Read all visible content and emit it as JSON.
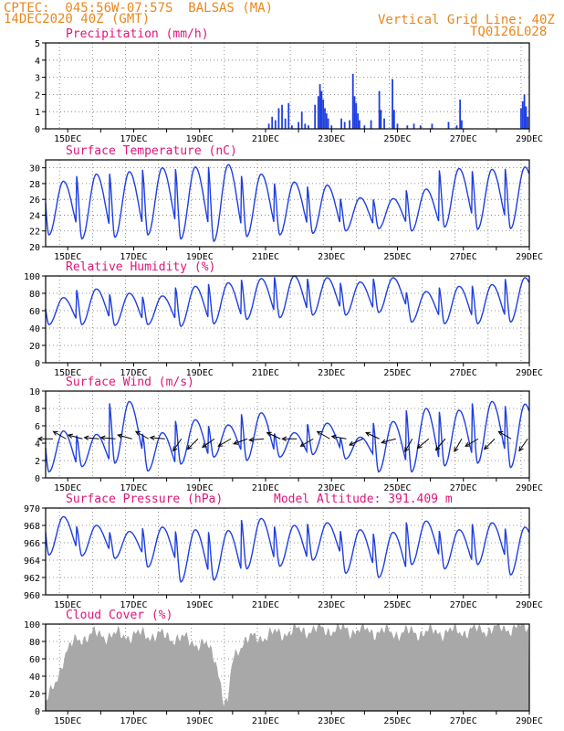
{
  "header": {
    "line1": "CPTEC:  045:56W-07:57S  BALSAS (MA)",
    "line2": "14DEC2020 40Z (GMT)",
    "grid_note": "Vertical Grid Line: 40Z",
    "code": "TQ0126L028"
  },
  "colors": {
    "header": "#e8871e",
    "title": "#e0147a",
    "line": "#1f3fe0",
    "cloud": "#a8a8a8",
    "arrow": "#000000"
  },
  "chart_data": [
    {
      "type": "bar",
      "title": "Precipitation (mm/h)",
      "ylim": [
        0,
        5
      ],
      "yticks": [
        0,
        1,
        2,
        3,
        4,
        5
      ],
      "xlabels": [
        "15DEC",
        "17DEC",
        "19DEC",
        "21DEC",
        "23DEC",
        "25DEC",
        "27DEC",
        "29DEC"
      ],
      "x_unit": "day of Dec 2020",
      "xlim": [
        14.33,
        29.0
      ],
      "bar_color": "#1f3fe0",
      "series": [
        {
          "x": 21.1,
          "y": 0.3
        },
        {
          "x": 21.2,
          "y": 0.7
        },
        {
          "x": 21.3,
          "y": 0.5
        },
        {
          "x": 21.4,
          "y": 1.2
        },
        {
          "x": 21.5,
          "y": 1.4
        },
        {
          "x": 21.6,
          "y": 0.6
        },
        {
          "x": 21.7,
          "y": 1.5
        },
        {
          "x": 21.8,
          "y": 0.2
        },
        {
          "x": 22.0,
          "y": 0.4
        },
        {
          "x": 22.1,
          "y": 1.0
        },
        {
          "x": 22.2,
          "y": 0.3
        },
        {
          "x": 22.3,
          "y": 0.2
        },
        {
          "x": 22.5,
          "y": 1.4
        },
        {
          "x": 22.6,
          "y": 1.9
        },
        {
          "x": 22.65,
          "y": 2.6
        },
        {
          "x": 22.7,
          "y": 2.2
        },
        {
          "x": 22.75,
          "y": 1.7
        },
        {
          "x": 22.8,
          "y": 1.2
        },
        {
          "x": 22.85,
          "y": 0.9
        },
        {
          "x": 22.9,
          "y": 0.6
        },
        {
          "x": 23.0,
          "y": 0.2
        },
        {
          "x": 23.3,
          "y": 0.6
        },
        {
          "x": 23.4,
          "y": 0.4
        },
        {
          "x": 23.55,
          "y": 0.5
        },
        {
          "x": 23.65,
          "y": 3.2
        },
        {
          "x": 23.7,
          "y": 1.9
        },
        {
          "x": 23.75,
          "y": 1.5
        },
        {
          "x": 23.8,
          "y": 0.9
        },
        {
          "x": 23.85,
          "y": 0.5
        },
        {
          "x": 24.0,
          "y": 0.2
        },
        {
          "x": 24.2,
          "y": 0.5
        },
        {
          "x": 24.45,
          "y": 2.2
        },
        {
          "x": 24.5,
          "y": 1.1
        },
        {
          "x": 24.6,
          "y": 0.6
        },
        {
          "x": 24.85,
          "y": 2.9
        },
        {
          "x": 24.9,
          "y": 1.1
        },
        {
          "x": 25.0,
          "y": 0.3
        },
        {
          "x": 25.3,
          "y": 0.2
        },
        {
          "x": 25.5,
          "y": 0.3
        },
        {
          "x": 25.7,
          "y": 0.2
        },
        {
          "x": 26.05,
          "y": 0.3
        },
        {
          "x": 26.55,
          "y": 0.4
        },
        {
          "x": 26.8,
          "y": 0.2
        },
        {
          "x": 26.9,
          "y": 1.7
        },
        {
          "x": 26.95,
          "y": 0.5
        },
        {
          "x": 28.75,
          "y": 1.2
        },
        {
          "x": 28.8,
          "y": 1.6
        },
        {
          "x": 28.85,
          "y": 2.0
        },
        {
          "x": 28.9,
          "y": 1.3
        },
        {
          "x": 28.95,
          "y": 0.7
        }
      ]
    },
    {
      "type": "line",
      "title": "Surface Temperature (nC)",
      "ylim": [
        20,
        31
      ],
      "yticks": [
        20,
        22,
        24,
        26,
        28,
        30
      ],
      "xlabels": [
        "15DEC",
        "17DEC",
        "19DEC",
        "21DEC",
        "23DEC",
        "25DEC",
        "27DEC",
        "29DEC"
      ],
      "x_unit": "day of Dec 2020",
      "xlim": [
        14.33,
        29.0
      ],
      "daily_min": [
        21.5,
        21.0,
        21.2,
        21.5,
        21.0,
        20.7,
        21.3,
        21.5,
        21.7,
        22.0,
        22.3,
        22.0,
        22.5,
        22.2,
        22.3
      ],
      "daily_max": [
        28.3,
        29.2,
        29.5,
        30.0,
        30.1,
        30.4,
        29.2,
        28.2,
        27.8,
        26.2,
        26.1,
        27.3,
        29.9,
        29.8,
        30.1
      ]
    },
    {
      "type": "line",
      "title": "Relative Humidity (%)",
      "ylim": [
        0,
        100
      ],
      "yticks": [
        0,
        20,
        40,
        60,
        80,
        100
      ],
      "xlabels": [
        "15DEC",
        "17DEC",
        "19DEC",
        "21DEC",
        "23DEC",
        "25DEC",
        "27DEC",
        "29DEC"
      ],
      "x_unit": "day of Dec 2020",
      "xlim": [
        14.33,
        29.0
      ],
      "daily_min": [
        44,
        44,
        43,
        44,
        42,
        45,
        50,
        52,
        55,
        55,
        58,
        47,
        45,
        45,
        47
      ],
      "daily_max": [
        75,
        85,
        80,
        77,
        88,
        92,
        97,
        100,
        98,
        93,
        98,
        82,
        88,
        90,
        98
      ]
    },
    {
      "type": "line",
      "title": "Surface Wind (m/s)",
      "ylim": [
        0,
        10
      ],
      "yticks": [
        0,
        2,
        4,
        6,
        8,
        10
      ],
      "xlabels": [
        "15DEC",
        "17DEC",
        "19DEC",
        "21DEC",
        "23DEC",
        "25DEC",
        "27DEC",
        "29DEC"
      ],
      "x_unit": "day of Dec 2020",
      "xlim": [
        14.33,
        29.0
      ],
      "daily_min": [
        0.7,
        1.3,
        1.7,
        0.8,
        1.6,
        2.4,
        2.0,
        2.4,
        2.7,
        2.2,
        0.7,
        0.7,
        1.4,
        1.7,
        1.2
      ],
      "daily_max": [
        5.4,
        5.0,
        8.8,
        5.2,
        6.7,
        6.1,
        7.5,
        5.2,
        6.3,
        4.7,
        6.5,
        8.0,
        7.8,
        8.8,
        8.5
      ],
      "wind_arrows": [
        {
          "x": 14.55,
          "dir": 270
        },
        {
          "x": 14.95,
          "dir": 300
        },
        {
          "x": 15.45,
          "dir": 285
        },
        {
          "x": 15.95,
          "dir": 275
        },
        {
          "x": 16.45,
          "dir": 275
        },
        {
          "x": 16.95,
          "dir": 285
        },
        {
          "x": 17.45,
          "dir": 300
        },
        {
          "x": 17.95,
          "dir": 275
        },
        {
          "x": 18.45,
          "dir": 215
        },
        {
          "x": 18.95,
          "dir": 225
        },
        {
          "x": 19.45,
          "dir": 235
        },
        {
          "x": 19.95,
          "dir": 240
        },
        {
          "x": 20.45,
          "dir": 250
        },
        {
          "x": 20.95,
          "dir": 265
        },
        {
          "x": 21.45,
          "dir": 295
        },
        {
          "x": 21.95,
          "dir": 270
        },
        {
          "x": 22.45,
          "dir": 240
        },
        {
          "x": 22.95,
          "dir": 300
        },
        {
          "x": 23.45,
          "dir": 280
        },
        {
          "x": 23.95,
          "dir": 245
        },
        {
          "x": 24.45,
          "dir": 295
        },
        {
          "x": 24.95,
          "dir": 255
        },
        {
          "x": 25.45,
          "dir": 210
        },
        {
          "x": 25.95,
          "dir": 230
        },
        {
          "x": 26.45,
          "dir": 220
        },
        {
          "x": 26.95,
          "dir": 210
        },
        {
          "x": 27.45,
          "dir": 240
        },
        {
          "x": 27.95,
          "dir": 225
        },
        {
          "x": 28.45,
          "dir": 300
        },
        {
          "x": 28.95,
          "dir": 215
        }
      ]
    },
    {
      "type": "line",
      "title": "Surface Pressure (hPa)",
      "subtitle": "Model Altitude: 391.409 m",
      "ylim": [
        960,
        970
      ],
      "yticks": [
        960,
        962,
        964,
        966,
        968,
        970
      ],
      "xlabels": [
        "15DEC",
        "17DEC",
        "19DEC",
        "21DEC",
        "23DEC",
        "25DEC",
        "27DEC",
        "29DEC"
      ],
      "x_unit": "day of Dec 2020",
      "xlim": [
        14.33,
        29.0
      ],
      "daily_min": [
        964.6,
        964.5,
        964.2,
        963.2,
        961.5,
        961.7,
        963.0,
        963.3,
        964.0,
        962.5,
        962.0,
        963.5,
        963.0,
        963.5,
        962.3
      ],
      "daily_max": [
        969.0,
        968.0,
        967.3,
        967.8,
        967.5,
        967.4,
        968.8,
        968.0,
        968.3,
        967.5,
        967.2,
        968.5,
        967.5,
        968.3,
        967.8
      ]
    },
    {
      "type": "area",
      "title": "Cloud Cover (%)",
      "ylim": [
        0,
        100
      ],
      "yticks": [
        0,
        20,
        40,
        60,
        80,
        100
      ],
      "xlabels": [
        "15DEC",
        "17DEC",
        "19DEC",
        "21DEC",
        "23DEC",
        "25DEC",
        "27DEC",
        "29DEC"
      ],
      "x_unit": "day of Dec 2020",
      "xlim": [
        14.33,
        29.0
      ],
      "fill_color": "#a8a8a8",
      "profile": [
        [
          14.33,
          10
        ],
        [
          14.5,
          20
        ],
        [
          14.7,
          40
        ],
        [
          14.85,
          60
        ],
        [
          15.0,
          70
        ],
        [
          15.3,
          83
        ],
        [
          15.8,
          88
        ],
        [
          16.5,
          87
        ],
        [
          17.5,
          88
        ],
        [
          18.2,
          85
        ],
        [
          18.8,
          80
        ],
        [
          19.2,
          75
        ],
        [
          19.5,
          60
        ],
        [
          19.65,
          30
        ],
        [
          19.72,
          12
        ],
        [
          19.85,
          5
        ],
        [
          20.0,
          60
        ],
        [
          20.3,
          80
        ],
        [
          21.0,
          87
        ],
        [
          22.0,
          93
        ],
        [
          23.0,
          94
        ],
        [
          24.0,
          93
        ],
        [
          25.0,
          90
        ],
        [
          26.0,
          91
        ],
        [
          27.0,
          92
        ],
        [
          28.0,
          95
        ],
        [
          29.0,
          97
        ]
      ]
    }
  ]
}
